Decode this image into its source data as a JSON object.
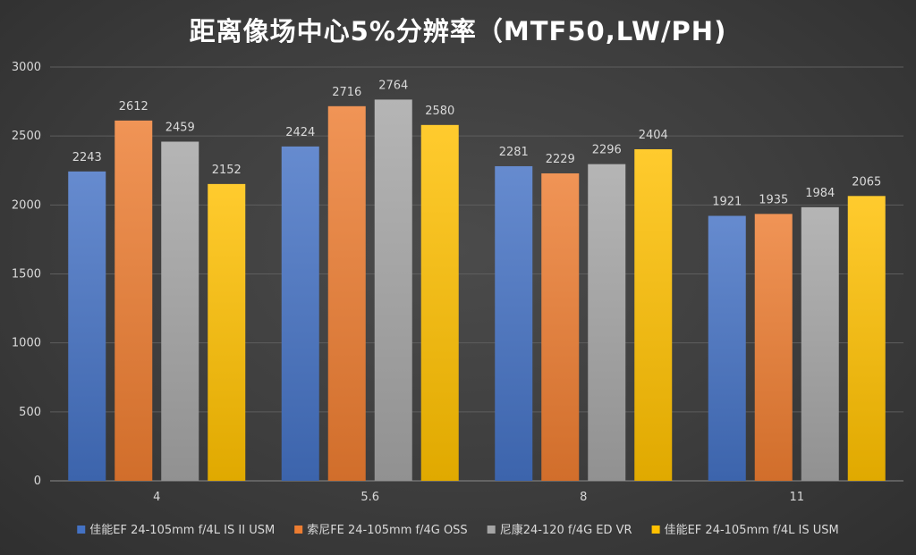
{
  "chart_data": {
    "type": "bar",
    "title": "距离像场中心5%分辨率（MTF50,LW/PH)",
    "categories": [
      "4",
      "5.6",
      "8",
      "11"
    ],
    "xlabel": "",
    "ylabel": "",
    "ylim": [
      0,
      3000
    ],
    "yticks": [
      0,
      500,
      1000,
      1500,
      2000,
      2500,
      3000
    ],
    "grid": true,
    "legend": "bottom",
    "series": [
      {
        "name": "佳能EF 24-105mm f/4L IS II USM",
        "color": "#4472c4",
        "values": [
          2243,
          2424,
          2281,
          1921
        ]
      },
      {
        "name": "索尼FE 24-105mm f/4G OSS",
        "color": "#ed7d31",
        "values": [
          2612,
          2716,
          2229,
          1935
        ]
      },
      {
        "name": "尼康24-120 f/4G ED VR",
        "color": "#a5a5a5",
        "values": [
          2459,
          2764,
          2296,
          1984
        ]
      },
      {
        "name": "佳能EF 24-105mm f/4L IS  USM",
        "color": "#ffc000",
        "values": [
          2152,
          2580,
          2404,
          2065
        ]
      }
    ]
  }
}
